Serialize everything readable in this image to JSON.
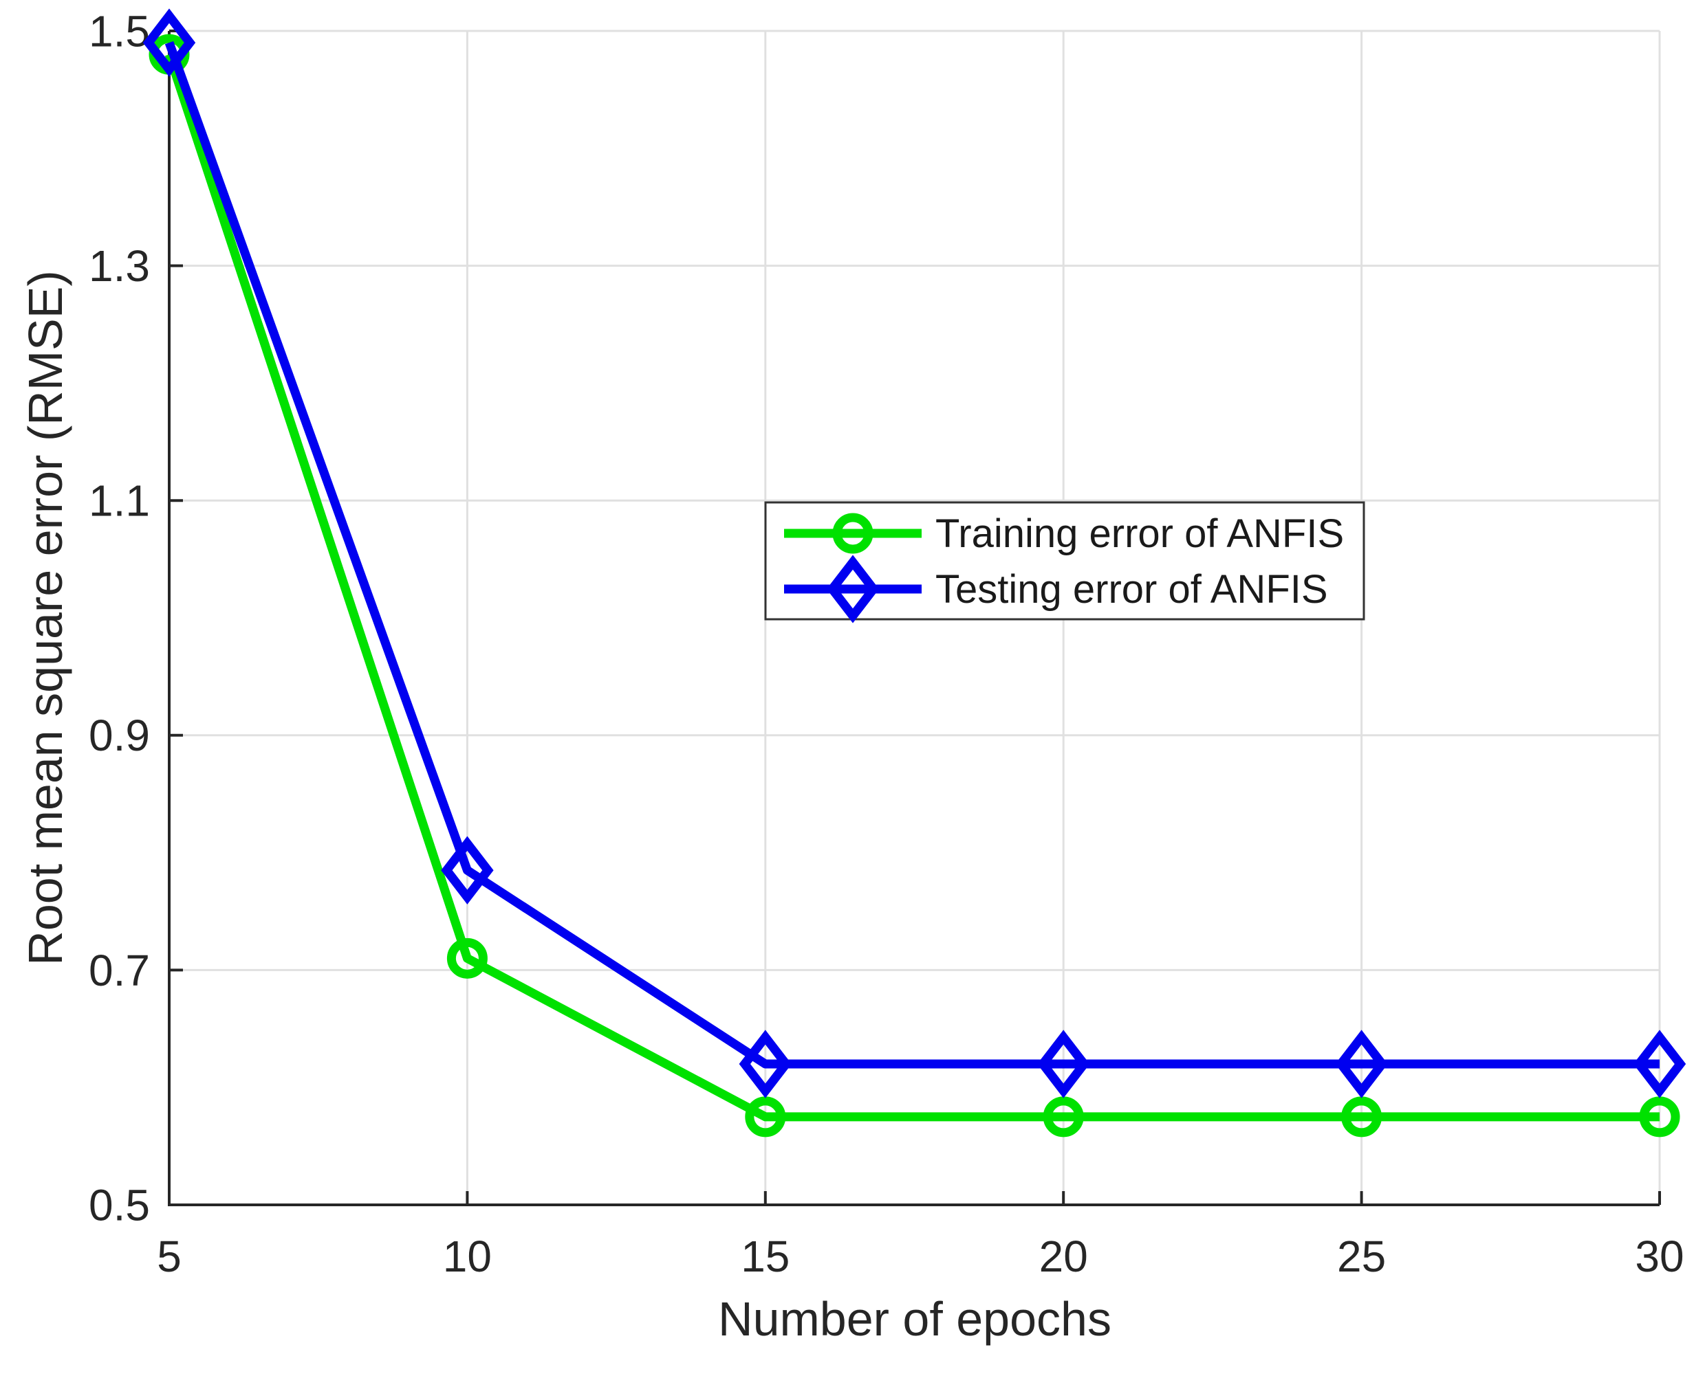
{
  "chart_data": {
    "type": "line",
    "title": "",
    "xlabel": "Number of epochs",
    "ylabel": "Root mean square error (RMSE)",
    "x": [
      5,
      10,
      15,
      20,
      25,
      30
    ],
    "series": [
      {
        "name": "Training error of ANFIS",
        "color": "#00e100",
        "marker": "circle",
        "values": [
          1.48,
          0.71,
          0.575,
          0.575,
          0.575,
          0.575
        ]
      },
      {
        "name": "Testing error of ANFIS",
        "color": "#0000f0",
        "marker": "diamond",
        "values": [
          1.49,
          0.785,
          0.62,
          0.62,
          0.62,
          0.62
        ]
      }
    ],
    "xlim": [
      5,
      30
    ],
    "ylim": [
      0.5,
      1.5
    ],
    "xticks": [
      5,
      10,
      15,
      20,
      25,
      30
    ],
    "yticks": [
      0.5,
      0.7,
      0.9,
      1.1,
      1.3,
      1.5
    ],
    "grid": true,
    "legend_position": "inside-upper-middle",
    "grid_color": "#e0e0e0",
    "axis_color": "#262626",
    "legend_border_color": "#333333",
    "background_color": "#ffffff"
  }
}
